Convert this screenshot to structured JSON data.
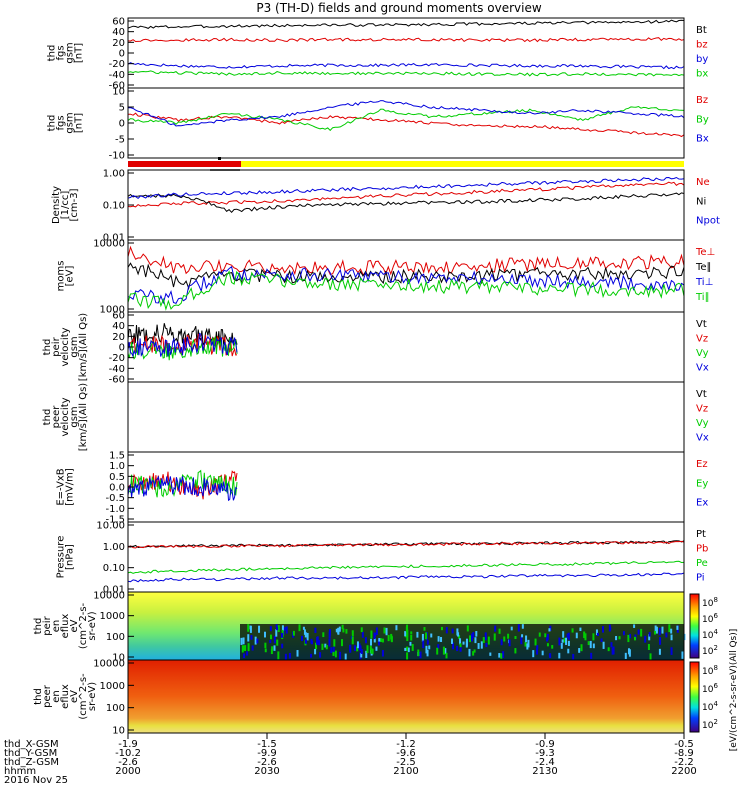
{
  "title": "P3 (TH-D) fields and ground moments overview",
  "colors": {
    "black": "#000000",
    "red": "#e00000",
    "green": "#00cc00",
    "blue": "#0000dd",
    "yellow": "#ffff00"
  },
  "chart_data": [
    {
      "id": "fgs-gsm",
      "type": "line",
      "ylabel": [
        "thd",
        "fgs",
        "gsm",
        "[nT]"
      ],
      "ylim": [
        -60,
        60
      ],
      "yticks": [
        "60",
        "40",
        "20",
        "0",
        "-20",
        "-40",
        "-60"
      ],
      "series": [
        {
          "name": "Bt",
          "color": "#000000",
          "values": [
            44,
            45,
            46,
            47,
            48,
            48,
            49,
            50,
            51,
            52,
            53,
            55
          ]
        },
        {
          "name": "bz",
          "color": "#e00000",
          "values": [
            22,
            22,
            23,
            22,
            23,
            23,
            23,
            22,
            22,
            23,
            24,
            24
          ]
        },
        {
          "name": "by",
          "color": "#0000dd",
          "values": [
            -18,
            -22,
            -24,
            -22,
            -21,
            -21,
            -20,
            -21,
            -22,
            -22,
            -24,
            -25
          ]
        },
        {
          "name": "bx",
          "color": "#00cc00",
          "values": [
            -32,
            -34,
            -36,
            -34,
            -35,
            -35,
            -35,
            -36,
            -37,
            -36,
            -37,
            -38
          ]
        }
      ]
    },
    {
      "id": "fgs-gsm-detrended",
      "type": "line",
      "ylabel": [
        "thd",
        "fgs",
        "gsm",
        "[nT]"
      ],
      "ylim": [
        -12,
        10
      ],
      "yticks": [
        "10",
        "5",
        "0",
        "-5",
        "-10"
      ],
      "series": [
        {
          "name": "Bz",
          "color": "#e00000",
          "values": [
            2,
            0,
            1,
            -1,
            1,
            0,
            -1,
            -2,
            -2,
            -3,
            -4,
            -5
          ]
        },
        {
          "name": "By",
          "color": "#00cc00",
          "values": [
            0,
            -1,
            2,
            0,
            -3,
            3,
            1,
            2,
            3,
            0,
            4,
            3
          ]
        },
        {
          "name": "Bx",
          "color": "#0000dd",
          "values": [
            4,
            -2,
            0,
            1,
            4,
            6,
            4,
            3,
            2,
            3,
            2,
            1
          ]
        }
      ]
    },
    {
      "id": "density",
      "type": "line",
      "log": true,
      "ylabel": [
        "Density",
        "[1/cc]",
        "[cm-3]"
      ],
      "ylim": [
        0.01,
        1.6
      ],
      "yticks": [
        "1.00",
        "0.10",
        "0.01"
      ],
      "series": [
        {
          "name": "Ne",
          "color": "#e00000",
          "values": [
            0.12,
            0.14,
            0.15,
            0.17,
            0.2,
            0.24,
            0.28,
            0.33,
            0.38,
            0.45,
            0.55,
            0.6
          ]
        },
        {
          "name": "Ni",
          "color": "#000000",
          "values": [
            0.25,
            0.25,
            0.08,
            0.11,
            0.13,
            0.14,
            0.15,
            0.16,
            0.18,
            0.2,
            0.24,
            0.28
          ]
        },
        {
          "name": "Npot",
          "color": "#0000dd",
          "values": [
            0.22,
            0.27,
            0.3,
            0.33,
            0.38,
            0.42,
            0.48,
            0.55,
            0.62,
            0.7,
            0.8,
            0.9
          ]
        }
      ]
    },
    {
      "id": "moments-temperature",
      "type": "line",
      "log": true,
      "ylabel": [
        "moms",
        "[eV]"
      ],
      "ylim": [
        1000,
        10000
      ],
      "yticks": [
        "10000",
        "1000"
      ],
      "series": [
        {
          "name": "Te⊥",
          "color": "#e00000",
          "values": [
            6500,
            4000,
            4500,
            4200,
            4100,
            4200,
            4300,
            4400,
            4600,
            4700,
            4800,
            5000
          ]
        },
        {
          "name": "Te∥",
          "color": "#000000",
          "values": [
            4600,
            2400,
            3200,
            3100,
            3000,
            3100,
            3200,
            3200,
            3300,
            3400,
            3500,
            3600
          ]
        },
        {
          "name": "Ti⊥",
          "color": "#0000dd",
          "values": [
            1800,
            1500,
            3500,
            3300,
            3200,
            3100,
            3000,
            2900,
            2800,
            2700,
            2500,
            2400
          ]
        },
        {
          "name": "Ti∥",
          "color": "#00cc00",
          "values": [
            1500,
            1300,
            3000,
            2700,
            2500,
            2400,
            2300,
            2200,
            2100,
            2100,
            2000,
            2000
          ]
        }
      ]
    },
    {
      "id": "peir-velocity",
      "type": "line",
      "ylabel": [
        "thd",
        "peir",
        "velocity",
        "gsm",
        "[km/s](All Qs)"
      ],
      "ylim": [
        -60,
        60
      ],
      "yticks": [
        "60",
        "40",
        "20",
        "0",
        "-20",
        "-40",
        "-60"
      ],
      "series": [
        {
          "name": "Vt",
          "color": "#000000",
          "values": [
            20,
            25,
            18,
            15
          ]
        },
        {
          "name": "Vz",
          "color": "#e00000",
          "values": [
            5,
            2,
            6,
            -3
          ]
        },
        {
          "name": "Vy",
          "color": "#00cc00",
          "values": [
            -4,
            -8,
            3,
            -2
          ]
        },
        {
          "name": "Vx",
          "color": "#0000dd",
          "values": [
            2,
            -5,
            8,
            0
          ]
        }
      ]
    },
    {
      "id": "peer-velocity",
      "type": "line",
      "ylabel": [
        "thd",
        "peer",
        "velocity",
        "gsm",
        "[km/s](All Qs)"
      ],
      "ylim": [
        -60,
        60
      ],
      "yticks": [],
      "series": [
        {
          "name": "Vt",
          "color": "#000000",
          "values": []
        },
        {
          "name": "Vz",
          "color": "#e00000",
          "values": []
        },
        {
          "name": "Vy",
          "color": "#00cc00",
          "values": []
        },
        {
          "name": "Vx",
          "color": "#0000dd",
          "values": []
        }
      ]
    },
    {
      "id": "e-field",
      "type": "line",
      "ylabel": [
        "E=-VxB",
        "[mV/m]"
      ],
      "ylim": [
        -1.5,
        1.5
      ],
      "yticks": [
        "1.5",
        "1.0",
        "0.5",
        "0.0",
        "-0.5",
        "-1.0",
        "-1.5"
      ],
      "series": [
        {
          "name": "Ez",
          "color": "#e00000",
          "values": [
            0.1,
            0.3,
            -0.2,
            0.4
          ]
        },
        {
          "name": "Ey",
          "color": "#00cc00",
          "values": [
            0.2,
            -0.1,
            0.3,
            0.0
          ]
        },
        {
          "name": "Ex",
          "color": "#0000dd",
          "values": [
            -0.2,
            0.1,
            0.0,
            -0.3
          ]
        }
      ]
    },
    {
      "id": "pressure",
      "type": "line",
      "log": true,
      "ylabel": [
        "Pressure",
        "[nPa]"
      ],
      "ylim": [
        0.01,
        10
      ],
      "yticks": [
        "10.00",
        "1.00",
        "0.10",
        "0.01"
      ],
      "series": [
        {
          "name": "Pt",
          "color": "#000000",
          "values": [
            0.9,
            0.95,
            0.98,
            1.0,
            1.05,
            1.1,
            1.15,
            1.2,
            1.25,
            1.3,
            1.35,
            1.4
          ]
        },
        {
          "name": "Pb",
          "color": "#e00000",
          "values": [
            0.85,
            0.9,
            0.93,
            0.95,
            1.0,
            1.05,
            1.1,
            1.15,
            1.2,
            1.25,
            1.3,
            1.35
          ]
        },
        {
          "name": "Pe",
          "color": "#00cc00",
          "values": [
            0.07,
            0.08,
            0.09,
            0.1,
            0.11,
            0.12,
            0.13,
            0.14,
            0.15,
            0.16,
            0.18,
            0.2
          ]
        },
        {
          "name": "Pi",
          "color": "#0000dd",
          "values": [
            0.03,
            0.035,
            0.035,
            0.04,
            0.04,
            0.04,
            0.045,
            0.045,
            0.05,
            0.05,
            0.055,
            0.06
          ]
        }
      ]
    },
    {
      "id": "peir-eflux",
      "type": "heatmap",
      "ylabel": [
        "thd",
        "peir",
        "en",
        "eflux",
        "eV",
        "(cm^2-s-",
        "sr-eV)"
      ],
      "yticks": [
        "10000",
        "1000",
        "100",
        "10"
      ]
    },
    {
      "id": "peer-eflux",
      "type": "heatmap",
      "ylabel": [
        "thd",
        "peer",
        "en",
        "eflux",
        "eV",
        "(cm^2-s-",
        "sr-eV)"
      ],
      "yticks": [
        "10000",
        "1000",
        "100",
        "10"
      ]
    }
  ],
  "colorbar": {
    "label": "[eV/(cm^2-s-sr-eV)(All Qs)]",
    "ticks": [
      "10^8",
      "10^6",
      "10^4",
      "10^2"
    ]
  },
  "ephemeris": {
    "labels": [
      "thd_X-GSM",
      "thd_Y-GSM",
      "thd_Z-GSM",
      "hhmm",
      "2016 Nov 25"
    ],
    "columns": [
      [
        "-1.9",
        "-10.2",
        "-2.6",
        "2000"
      ],
      [
        "-1.5",
        "-9.9",
        "-2.6",
        "2030"
      ],
      [
        "-1.2",
        "-9.6",
        "-2.5",
        "2100"
      ],
      [
        "-0.9",
        "-9.3",
        "-2.4",
        "2130"
      ],
      [
        "-0.5",
        "-8.9",
        "-2.2",
        "2200"
      ]
    ]
  }
}
